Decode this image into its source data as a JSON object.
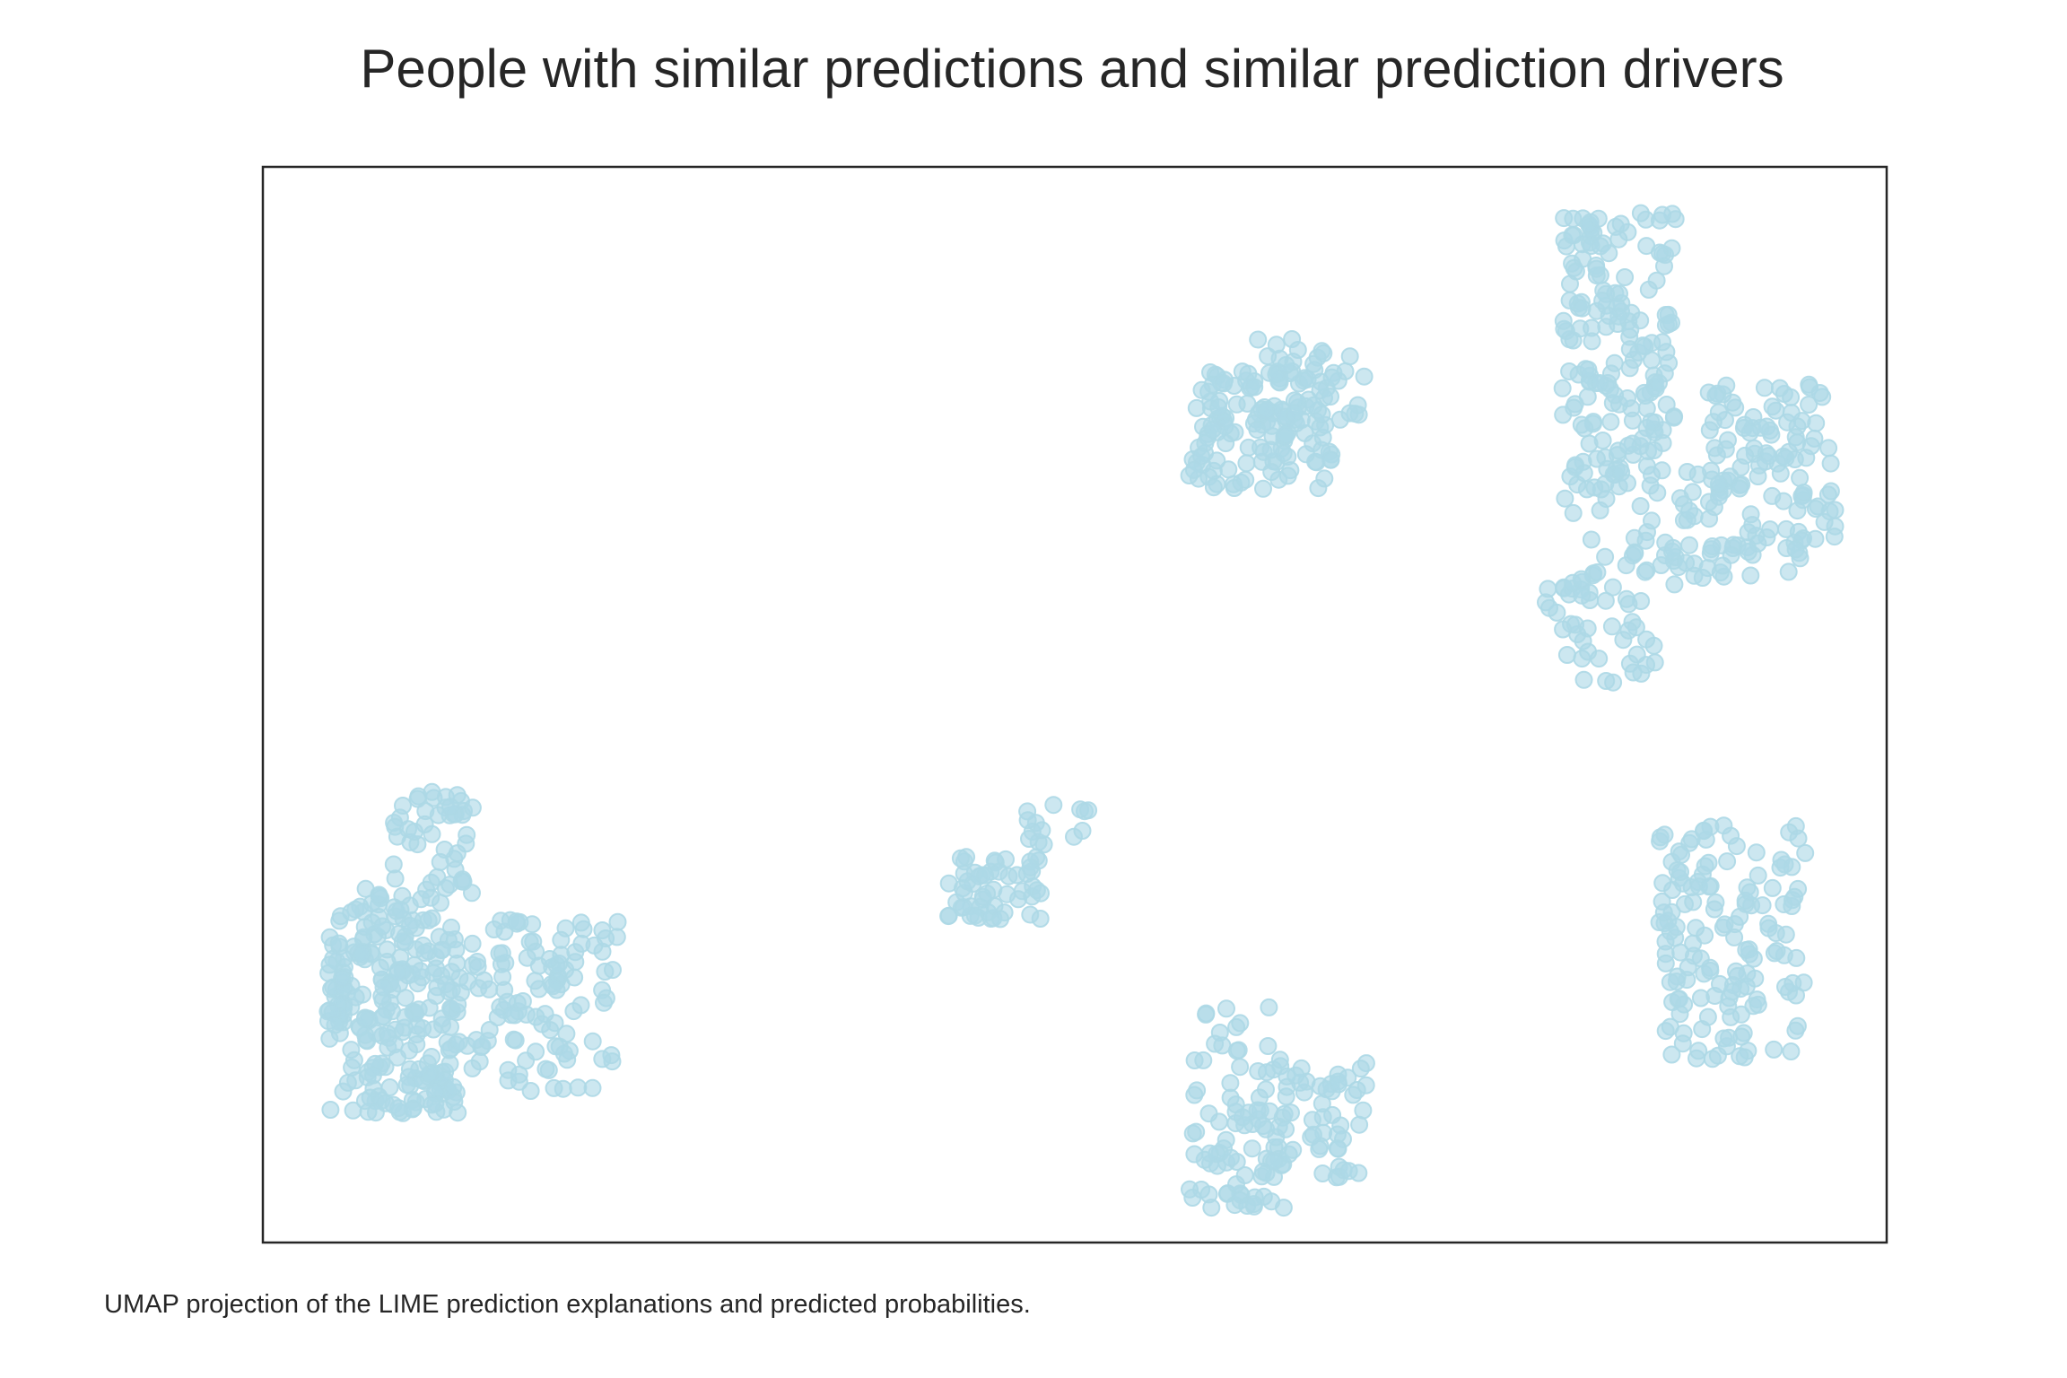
{
  "chart_data": {
    "type": "scatter",
    "title": "People with similar predictions and similar prediction drivers",
    "xlabel": "",
    "ylabel": "",
    "caption": "UMAP projection of the LIME prediction explanations and predicted probabilities.",
    "xlim": [
      0,
      100
    ],
    "ylim": [
      0,
      100
    ],
    "axis_ticks": false,
    "grid": false,
    "legend": "none",
    "point_color": "#add8e6",
    "frame_color": "#262626",
    "clusters": [
      {
        "x": [
          [
            4,
            12
          ],
          [
            4,
            5
          ],
          [
            8,
            13
          ],
          [
            12,
            22
          ]
        ],
        "y": [
          [
            12,
            33
          ],
          [
            20,
            28
          ],
          [
            32,
            42
          ],
          [
            14,
            30
          ]
        ],
        "counts": [
          230,
          24,
          45,
          115
        ]
      },
      {
        "x": [
          [
            42,
            48
          ],
          [
            47,
            51
          ]
        ],
        "y": [
          [
            30,
            36
          ],
          [
            37,
            41
          ]
        ],
        "counts": [
          55,
          14
        ]
      },
      {
        "x": [
          [
            57,
            63
          ],
          [
            61,
            68
          ]
        ],
        "y": [
          [
            3,
            22
          ],
          [
            6,
            17
          ]
        ],
        "counts": [
          75,
          65
        ]
      },
      {
        "x": [
          [
            57,
            66
          ],
          [
            61,
            68
          ]
        ],
        "y": [
          [
            70,
            81
          ],
          [
            76,
            84
          ]
        ],
        "counts": [
          130,
          40
        ]
      },
      {
        "x": [
          [
            80,
            87
          ],
          [
            80,
            90
          ],
          [
            89,
            97
          ],
          [
            86,
            95
          ],
          [
            79,
            86
          ]
        ],
        "y": [
          [
            70,
            96
          ],
          [
            61,
            72
          ],
          [
            64,
            80
          ],
          [
            62,
            65
          ],
          [
            52,
            62
          ]
        ],
        "counts": [
          175,
          50,
          110,
          20,
          45
        ]
      },
      {
        "x": [
          [
            86,
            95
          ]
        ],
        "y": [
          [
            17,
            39
          ]
        ],
        "counts": [
          150
        ]
      }
    ]
  }
}
